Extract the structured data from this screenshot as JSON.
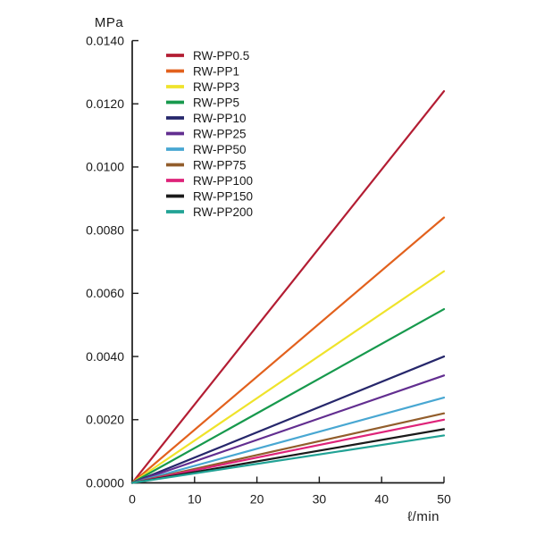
{
  "page": {
    "background": "#ffffff",
    "axis_color": "#1a1a1a",
    "text_color": "#1a1a1a"
  },
  "chart_data": {
    "type": "line",
    "title": "",
    "y_unit_label": "MPa",
    "x_unit_label": "ℓ/min",
    "xlabel": "ℓ/min",
    "ylabel": "MPa",
    "x_range": [
      0,
      50
    ],
    "y_range": [
      0,
      0.014
    ],
    "x_ticks": [
      0,
      10,
      20,
      30,
      40,
      50
    ],
    "y_ticks": [
      0.0,
      0.002,
      0.004,
      0.006,
      0.008,
      0.01,
      0.012,
      0.014
    ],
    "y_tick_decimals": 4,
    "grid": false,
    "legend_position": "top-left-inside",
    "x": [
      0,
      50
    ],
    "series": [
      {
        "name": "RW-PP0.5",
        "color": "#b31d33",
        "values": [
          0,
          0.0124
        ]
      },
      {
        "name": "RW-PP1",
        "color": "#e2611d",
        "values": [
          0,
          0.0084
        ]
      },
      {
        "name": "RW-PP3",
        "color": "#efe32b",
        "values": [
          0,
          0.0067
        ]
      },
      {
        "name": "RW-PP5",
        "color": "#17994d",
        "values": [
          0,
          0.0055
        ]
      },
      {
        "name": "RW-PP10",
        "color": "#26276b",
        "values": [
          0,
          0.004
        ]
      },
      {
        "name": "RW-PP25",
        "color": "#622e90",
        "values": [
          0,
          0.0034
        ]
      },
      {
        "name": "RW-PP50",
        "color": "#48a7d2",
        "values": [
          0,
          0.0027
        ]
      },
      {
        "name": "RW-PP75",
        "color": "#925d2b",
        "values": [
          0,
          0.0022
        ]
      },
      {
        "name": "RW-PP100",
        "color": "#de2379",
        "values": [
          0,
          0.002
        ]
      },
      {
        "name": "RW-PP150",
        "color": "#1a1a1a",
        "values": [
          0,
          0.0017
        ]
      },
      {
        "name": "RW-PP200",
        "color": "#21a295",
        "values": [
          0,
          0.0015
        ]
      }
    ]
  }
}
